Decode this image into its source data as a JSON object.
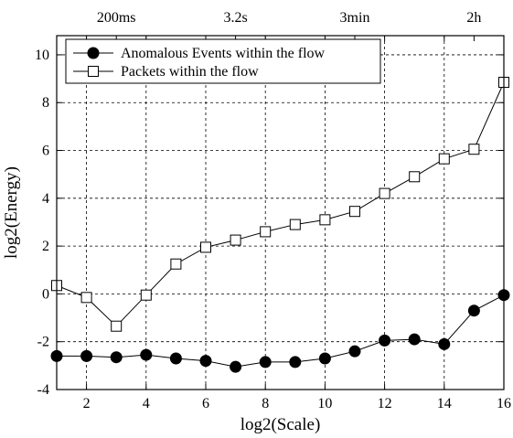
{
  "chart_data": {
    "type": "line",
    "xlabel": "log2(Scale)",
    "ylabel": "log2(Energy)",
    "xlim": [
      1,
      16
    ],
    "ylim": [
      -4,
      10.8
    ],
    "x_ticks": [
      2,
      4,
      6,
      8,
      10,
      12,
      14,
      16
    ],
    "y_ticks": [
      -4,
      -2,
      0,
      2,
      4,
      6,
      8,
      10
    ],
    "top_axis": {
      "labels": [
        {
          "x": 3,
          "label": "200ms"
        },
        {
          "x": 7,
          "label": "3.2s"
        },
        {
          "x": 11,
          "label": "3min"
        },
        {
          "x": 15,
          "label": "2h"
        }
      ]
    },
    "grid": true,
    "legend_position": "top-left",
    "x": [
      1,
      2,
      3,
      4,
      5,
      6,
      7,
      8,
      9,
      10,
      11,
      12,
      13,
      14,
      15,
      16
    ],
    "series": [
      {
        "name": "Anomalous Events within the flow",
        "marker": "filled-circle",
        "values": [
          -2.6,
          -2.6,
          -2.65,
          -2.55,
          -2.7,
          -2.8,
          -3.05,
          -2.85,
          -2.85,
          -2.7,
          -2.4,
          -1.95,
          -1.9,
          -2.1,
          -0.7,
          -0.05
        ]
      },
      {
        "name": "Packets within the flow",
        "marker": "open-square",
        "values": [
          0.35,
          -0.15,
          -1.35,
          -0.05,
          1.25,
          1.95,
          2.25,
          2.6,
          2.9,
          3.1,
          3.45,
          4.2,
          4.9,
          5.65,
          6.05,
          8.85
        ]
      }
    ]
  }
}
